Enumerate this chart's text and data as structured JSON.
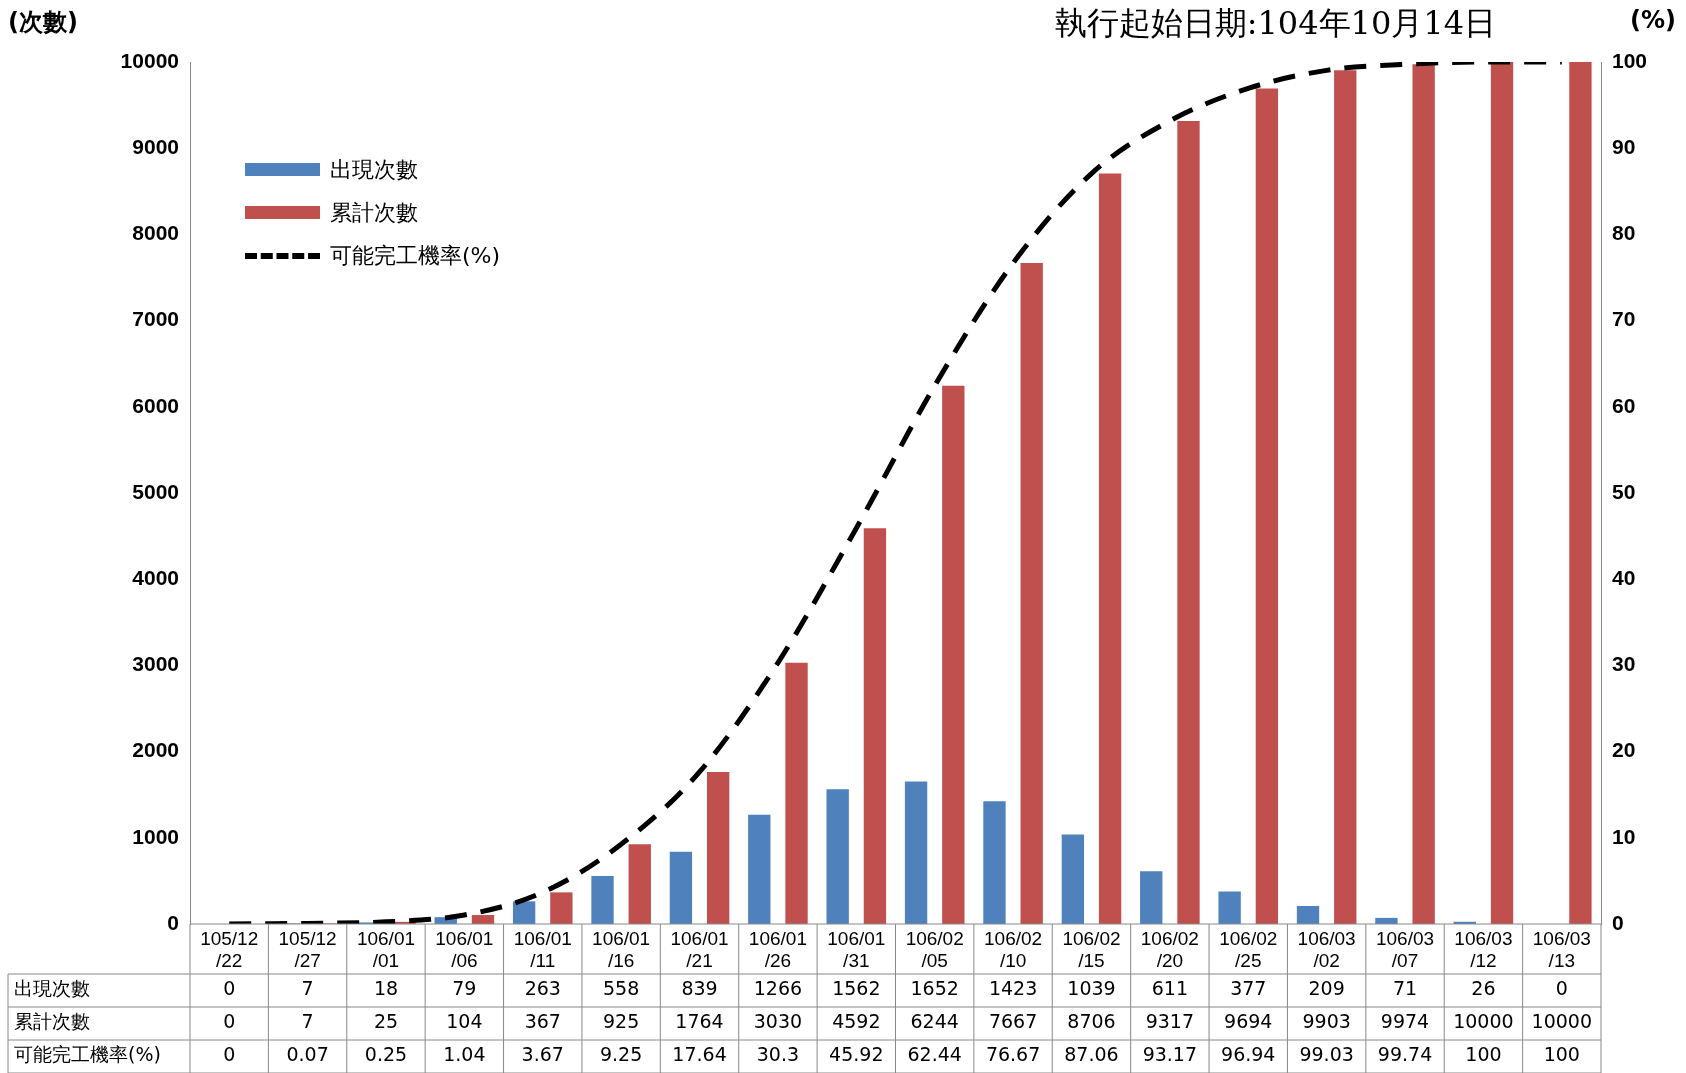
{
  "chart_data": {
    "type": "bar",
    "title": "執行起始日期:104年10月14日",
    "ylabel": "(次數)",
    "y2label": "(%)",
    "categories": [
      "105/12/22",
      "105/12/27",
      "106/01/01",
      "106/01/06",
      "106/01/11",
      "106/01/16",
      "106/01/21",
      "106/01/26",
      "106/01/31",
      "106/02/05",
      "106/02/10",
      "106/02/15",
      "106/02/20",
      "106/02/25",
      "106/03/02",
      "106/03/07",
      "106/03/12",
      "106/03/13"
    ],
    "series": [
      {
        "name": "出現次數",
        "color": "#4f81bd",
        "values": [
          0,
          7,
          18,
          79,
          263,
          558,
          839,
          1266,
          1562,
          1652,
          1423,
          1039,
          611,
          377,
          209,
          71,
          26,
          0
        ]
      },
      {
        "name": "累計次數",
        "color": "#c0504d",
        "values": [
          0,
          7,
          25,
          104,
          367,
          925,
          1764,
          3030,
          4592,
          6244,
          7667,
          8706,
          9317,
          9694,
          9903,
          9974,
          10000,
          10000
        ]
      },
      {
        "name": "可能完工機率(%)",
        "type": "line",
        "axis": "y2",
        "color": "#000000",
        "line_style": "dashed",
        "marker": "none",
        "values": [
          0,
          0.07,
          0.25,
          1.04,
          3.67,
          9.25,
          17.64,
          30.3,
          45.92,
          62.44,
          76.67,
          87.06,
          93.17,
          96.94,
          99.03,
          99.74,
          100,
          100
        ]
      }
    ],
    "ylim": [
      0,
      10000
    ],
    "yticks": [
      0,
      1000,
      2000,
      3000,
      4000,
      5000,
      6000,
      7000,
      8000,
      9000,
      10000
    ],
    "y2lim": [
      0,
      100
    ],
    "y2ticks": [
      0,
      10,
      20,
      30,
      40,
      50,
      60,
      70,
      80,
      90,
      100
    ],
    "grid": false,
    "legend": "top left",
    "data_labels": true
  }
}
